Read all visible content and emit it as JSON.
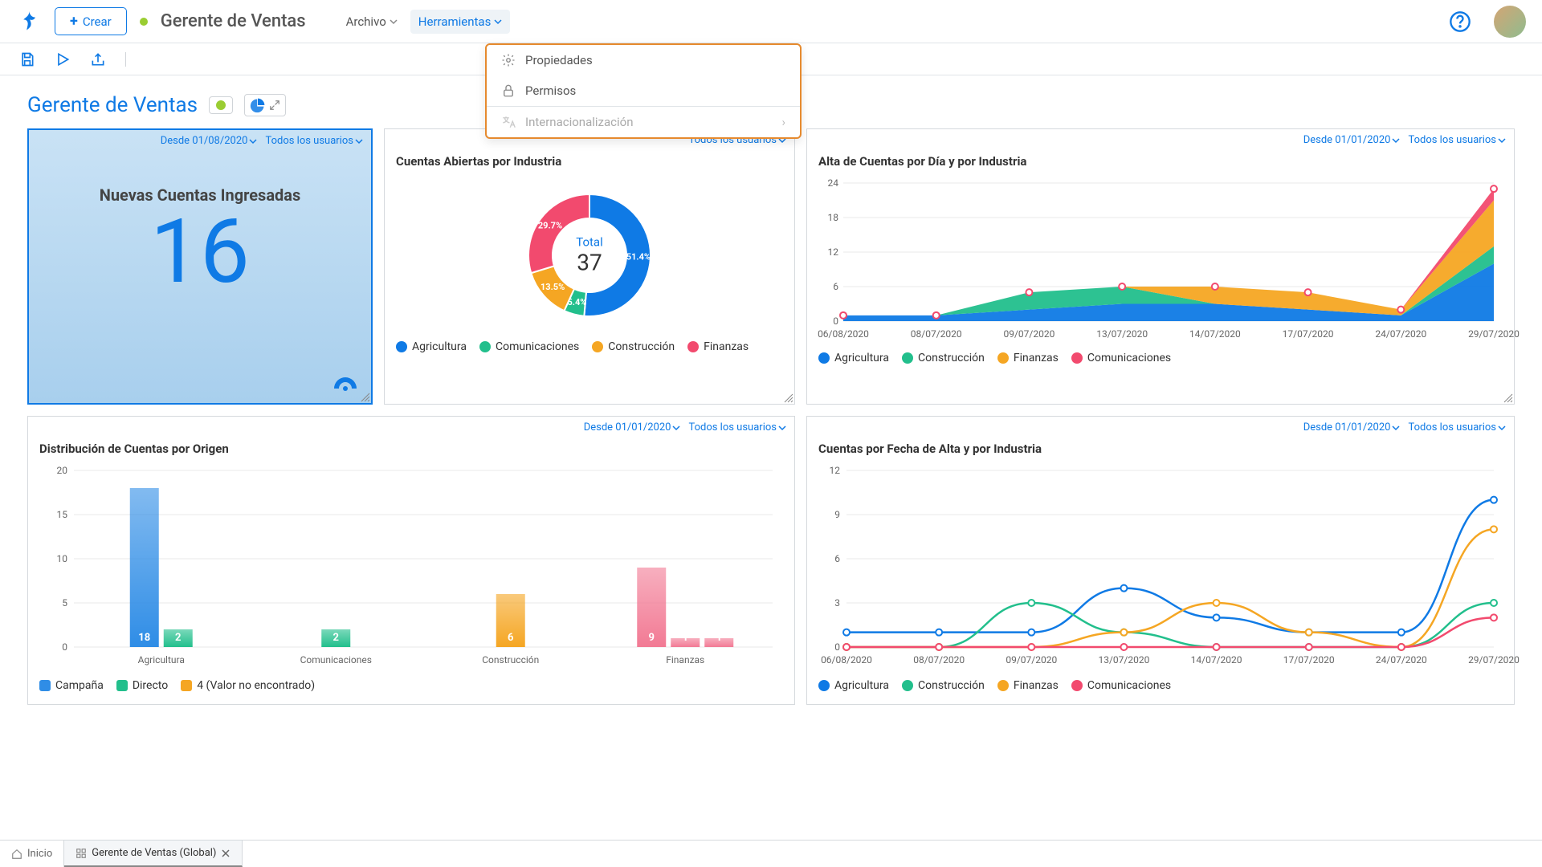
{
  "topbar": {
    "create_label": "Crear",
    "page_name": "Gerente de Ventas",
    "status_color": "#9acd32",
    "menu": {
      "file": "Archivo",
      "tools": "Herramientas"
    },
    "accent": "#0f7ae5"
  },
  "dropdown": {
    "border_color": "#e68a2e",
    "items": [
      {
        "label": "Propiedades",
        "icon": "gear"
      },
      {
        "label": "Permisos",
        "icon": "lock"
      }
    ],
    "disabled_item": {
      "label": "Internacionalización",
      "icon": "translate"
    }
  },
  "page": {
    "title": "Gerente de Ventas",
    "filter_date_1": "Desde 01/08/2020",
    "filter_date_2": "Desde 01/01/2020",
    "filter_users": "Todos los usuarios"
  },
  "kpi": {
    "label": "Nuevas Cuentas Ingresadas",
    "value": "16",
    "bg_from": "#c9e2f5",
    "bg_to": "#a8cfed"
  },
  "donut": {
    "title": "Cuentas Abiertas por Industria",
    "total_label": "Total",
    "total_value": "37",
    "slices": [
      {
        "label": "Agricultura",
        "pct": 51.4,
        "color": "#0f7ae5",
        "text": "51.4%"
      },
      {
        "label": "Comunicaciones",
        "pct": 5.4,
        "color": "#22bf8c",
        "text": "5.4%"
      },
      {
        "label": "Construcción",
        "pct": 13.5,
        "color": "#f5a623",
        "text": "13.5%"
      },
      {
        "label": "Finanzas",
        "pct": 29.7,
        "color": "#f24a6e",
        "text": "29.7%"
      }
    ]
  },
  "area": {
    "title": "Alta de Cuentas por Día y por Industria",
    "x_labels": [
      "06/08/2020",
      "08/07/2020",
      "09/07/2020",
      "13/07/2020",
      "14/07/2020",
      "17/07/2020",
      "24/07/2020",
      "29/07/2020"
    ],
    "y_ticks": [
      0,
      6,
      12,
      18,
      24
    ],
    "series": [
      {
        "label": "Agricultura",
        "color": "#0f7ae5",
        "values": [
          1,
          1,
          2,
          3,
          3,
          2,
          1,
          10
        ]
      },
      {
        "label": "Construcción",
        "color": "#22bf8c",
        "values": [
          0,
          0,
          3,
          3,
          0,
          0,
          0,
          3
        ]
      },
      {
        "label": "Finanzas",
        "color": "#f5a623",
        "values": [
          0,
          0,
          0,
          0,
          3,
          3,
          1,
          8
        ]
      },
      {
        "label": "Comunicaciones",
        "color": "#f24a6e",
        "values": [
          0,
          0,
          0,
          0,
          0,
          0,
          0,
          2
        ]
      }
    ]
  },
  "bars": {
    "title": "Distribución de Cuentas por Origen",
    "categories": [
      "Agricultura",
      "Comunicaciones",
      "Construcción",
      "Finanzas"
    ],
    "y_ticks": [
      0,
      5,
      10,
      15,
      20
    ],
    "series": [
      {
        "label": "Campaña",
        "color": "#2f8de6",
        "values": [
          18,
          0,
          0,
          0
        ]
      },
      {
        "label": "Directo",
        "color": "#22bf8c",
        "values": [
          2,
          2,
          0,
          0
        ]
      },
      {
        "label": "4 (Valor no encontrado)",
        "color": "#f5a623",
        "values": [
          0,
          0,
          6,
          0
        ]
      }
    ],
    "extra_pink": {
      "color": "#f27a94",
      "values": [
        0,
        0,
        0,
        9
      ],
      "tails": [
        1,
        1
      ]
    }
  },
  "lines": {
    "title": "Cuentas por Fecha de Alta y por Industria",
    "x_labels": [
      "06/08/2020",
      "08/07/2020",
      "09/07/2020",
      "13/07/2020",
      "14/07/2020",
      "17/07/2020",
      "24/07/2020",
      "29/07/2020"
    ],
    "y_ticks": [
      0,
      3,
      6,
      9,
      12
    ],
    "series": [
      {
        "label": "Agricultura",
        "color": "#0f7ae5",
        "values": [
          1,
          1,
          1,
          4,
          2,
          1,
          1,
          10
        ]
      },
      {
        "label": "Construcción",
        "color": "#22bf8c",
        "values": [
          0,
          0,
          3,
          1,
          0,
          0,
          0,
          3
        ]
      },
      {
        "label": "Finanzas",
        "color": "#f5a623",
        "values": [
          0,
          0,
          0,
          1,
          3,
          1,
          0,
          8
        ]
      },
      {
        "label": "Comunicaciones",
        "color": "#f24a6e",
        "values": [
          0,
          0,
          0,
          0,
          0,
          0,
          0,
          2
        ]
      }
    ]
  },
  "tabs": {
    "home": "Inicio",
    "active": "Gerente de Ventas (Global)"
  }
}
